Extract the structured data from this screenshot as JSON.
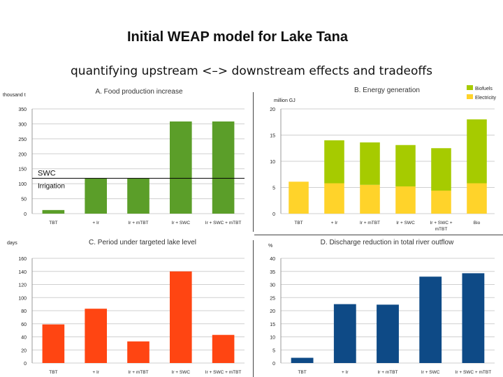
{
  "slide": {
    "title": "Initial WEAP model for Lake Tana",
    "subtitle": "quantifying upstream <–> downstream effects and tradeoffs"
  },
  "chart_data": [
    {
      "type": "bar",
      "title": "A. Food production increase",
      "unit_label": "thousand t",
      "categories": [
        "TBT",
        "+ Ir",
        "Ir + mTBT",
        "Ir + SWC",
        "Ir + SWC + mTBT"
      ],
      "values": [
        12,
        118,
        118,
        308,
        308
      ],
      "ylim": [
        0,
        350
      ],
      "yticks": [
        0,
        50,
        100,
        150,
        200,
        250,
        300,
        350
      ],
      "color": "#5b9e29",
      "reference_lines": [
        {
          "label": "SWC",
          "value": 118
        },
        {
          "label": "Irrigation",
          "value": 118
        }
      ],
      "grid": true
    },
    {
      "type": "bar",
      "stacked": true,
      "title": "B. Energy generation",
      "unit_label": "million GJ",
      "categories": [
        "TBT",
        "+ Ir",
        "Ir + mTBT",
        "Ir + SWC",
        "Ir + SWC + mTBT",
        "Bio"
      ],
      "series": [
        {
          "name": "Electricity",
          "values": [
            6.1,
            5.8,
            5.5,
            5.2,
            4.4,
            5.8
          ],
          "color": "#ffd32a"
        },
        {
          "name": "Biofuels",
          "values": [
            0,
            8.2,
            8.1,
            7.9,
            8.1,
            12.2
          ],
          "color": "#a6cb00"
        }
      ],
      "legend": "top-right",
      "ylim": [
        0,
        20
      ],
      "yticks": [
        0,
        5,
        10,
        15,
        20
      ],
      "grid": true
    },
    {
      "type": "bar",
      "title": "C. Period under targeted lake level",
      "unit_label": "days",
      "categories": [
        "TBT",
        "+ Ir",
        "Ir + mTBT",
        "Ir + SWC",
        "Ir + SWC + mTBT"
      ],
      "values": [
        59,
        83,
        33,
        140,
        43
      ],
      "ylim": [
        0,
        160
      ],
      "yticks": [
        0,
        20,
        40,
        60,
        80,
        100,
        120,
        140,
        160
      ],
      "color": "#ff4512",
      "grid": true
    },
    {
      "type": "bar",
      "title": "D. Discharge reduction in total river outflow",
      "unit_label": "%",
      "categories": [
        "TBT",
        "+ Ir",
        "Ir + mTBT",
        "Ir + SWC",
        "Ir + SWC + mTBT"
      ],
      "values": [
        2,
        22.5,
        22.3,
        33,
        34.3
      ],
      "ylim": [
        0,
        40
      ],
      "yticks": [
        0,
        5,
        10,
        15,
        20,
        25,
        30,
        35,
        40
      ],
      "color": "#0e4a86",
      "grid": true
    }
  ]
}
